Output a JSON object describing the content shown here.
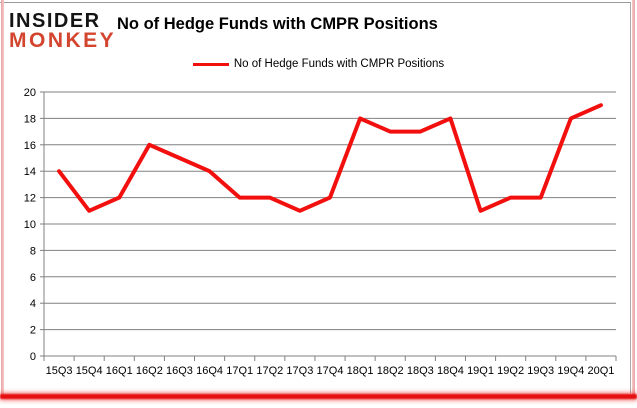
{
  "logo": {
    "line1": "INSIDER",
    "line2": "MONKEY"
  },
  "title": "No of Hedge Funds with CMPR Positions",
  "legend": {
    "label": "No of Hedge Funds with CMPR Positions"
  },
  "colors": {
    "series_red": "#f2100e",
    "logo_black": "#141414",
    "logo_red": "#d3452f",
    "grid_gray": "#808080",
    "border_pink": "#f0b4b4",
    "glow_red": "#e60e0e"
  },
  "chart_data": {
    "type": "line",
    "title": "No of Hedge Funds with CMPR Positions",
    "series_name": "No of Hedge Funds with CMPR Positions",
    "categories": [
      "15Q3",
      "15Q4",
      "16Q1",
      "16Q2",
      "16Q3",
      "16Q4",
      "17Q1",
      "17Q2",
      "17Q3",
      "17Q4",
      "18Q1",
      "18Q2",
      "18Q3",
      "18Q4",
      "19Q1",
      "19Q2",
      "19Q3",
      "19Q4",
      "20Q1"
    ],
    "values": [
      14,
      11,
      12,
      16,
      15,
      14,
      12,
      12,
      11,
      12,
      18,
      17,
      17,
      18,
      11,
      12,
      12,
      18,
      19
    ],
    "xlabel": "",
    "ylabel": "",
    "ylim": [
      0,
      20
    ],
    "ytick_step": 2,
    "grid": true,
    "legend_position": "top-center",
    "line_width": 4
  }
}
